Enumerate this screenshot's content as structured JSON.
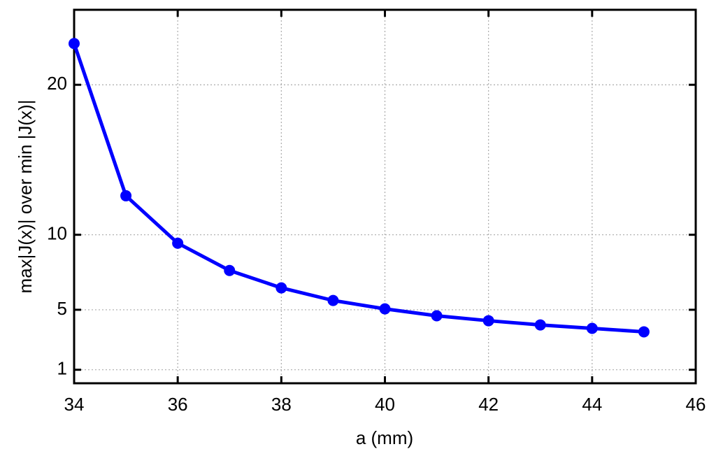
{
  "chart_data": {
    "type": "line",
    "xlabel": "a (mm)",
    "ylabel": "max|J(x)| over min |J(x)|",
    "x": [
      34,
      35,
      36,
      37,
      38,
      39,
      40,
      41,
      42,
      43,
      44,
      45
    ],
    "series": [
      {
        "color": "#0000ff",
        "values": [
          22.75,
          12.6,
          9.44,
          7.62,
          6.46,
          5.62,
          5.06,
          4.6,
          4.27,
          3.99,
          3.76,
          3.53
        ]
      }
    ],
    "xlim": [
      34,
      46
    ],
    "xticks": [
      34,
      36,
      38,
      40,
      42,
      44,
      46
    ],
    "ylim": [
      0.1,
      25
    ],
    "yticks": [
      1,
      5,
      10,
      20
    ],
    "grid": true
  }
}
